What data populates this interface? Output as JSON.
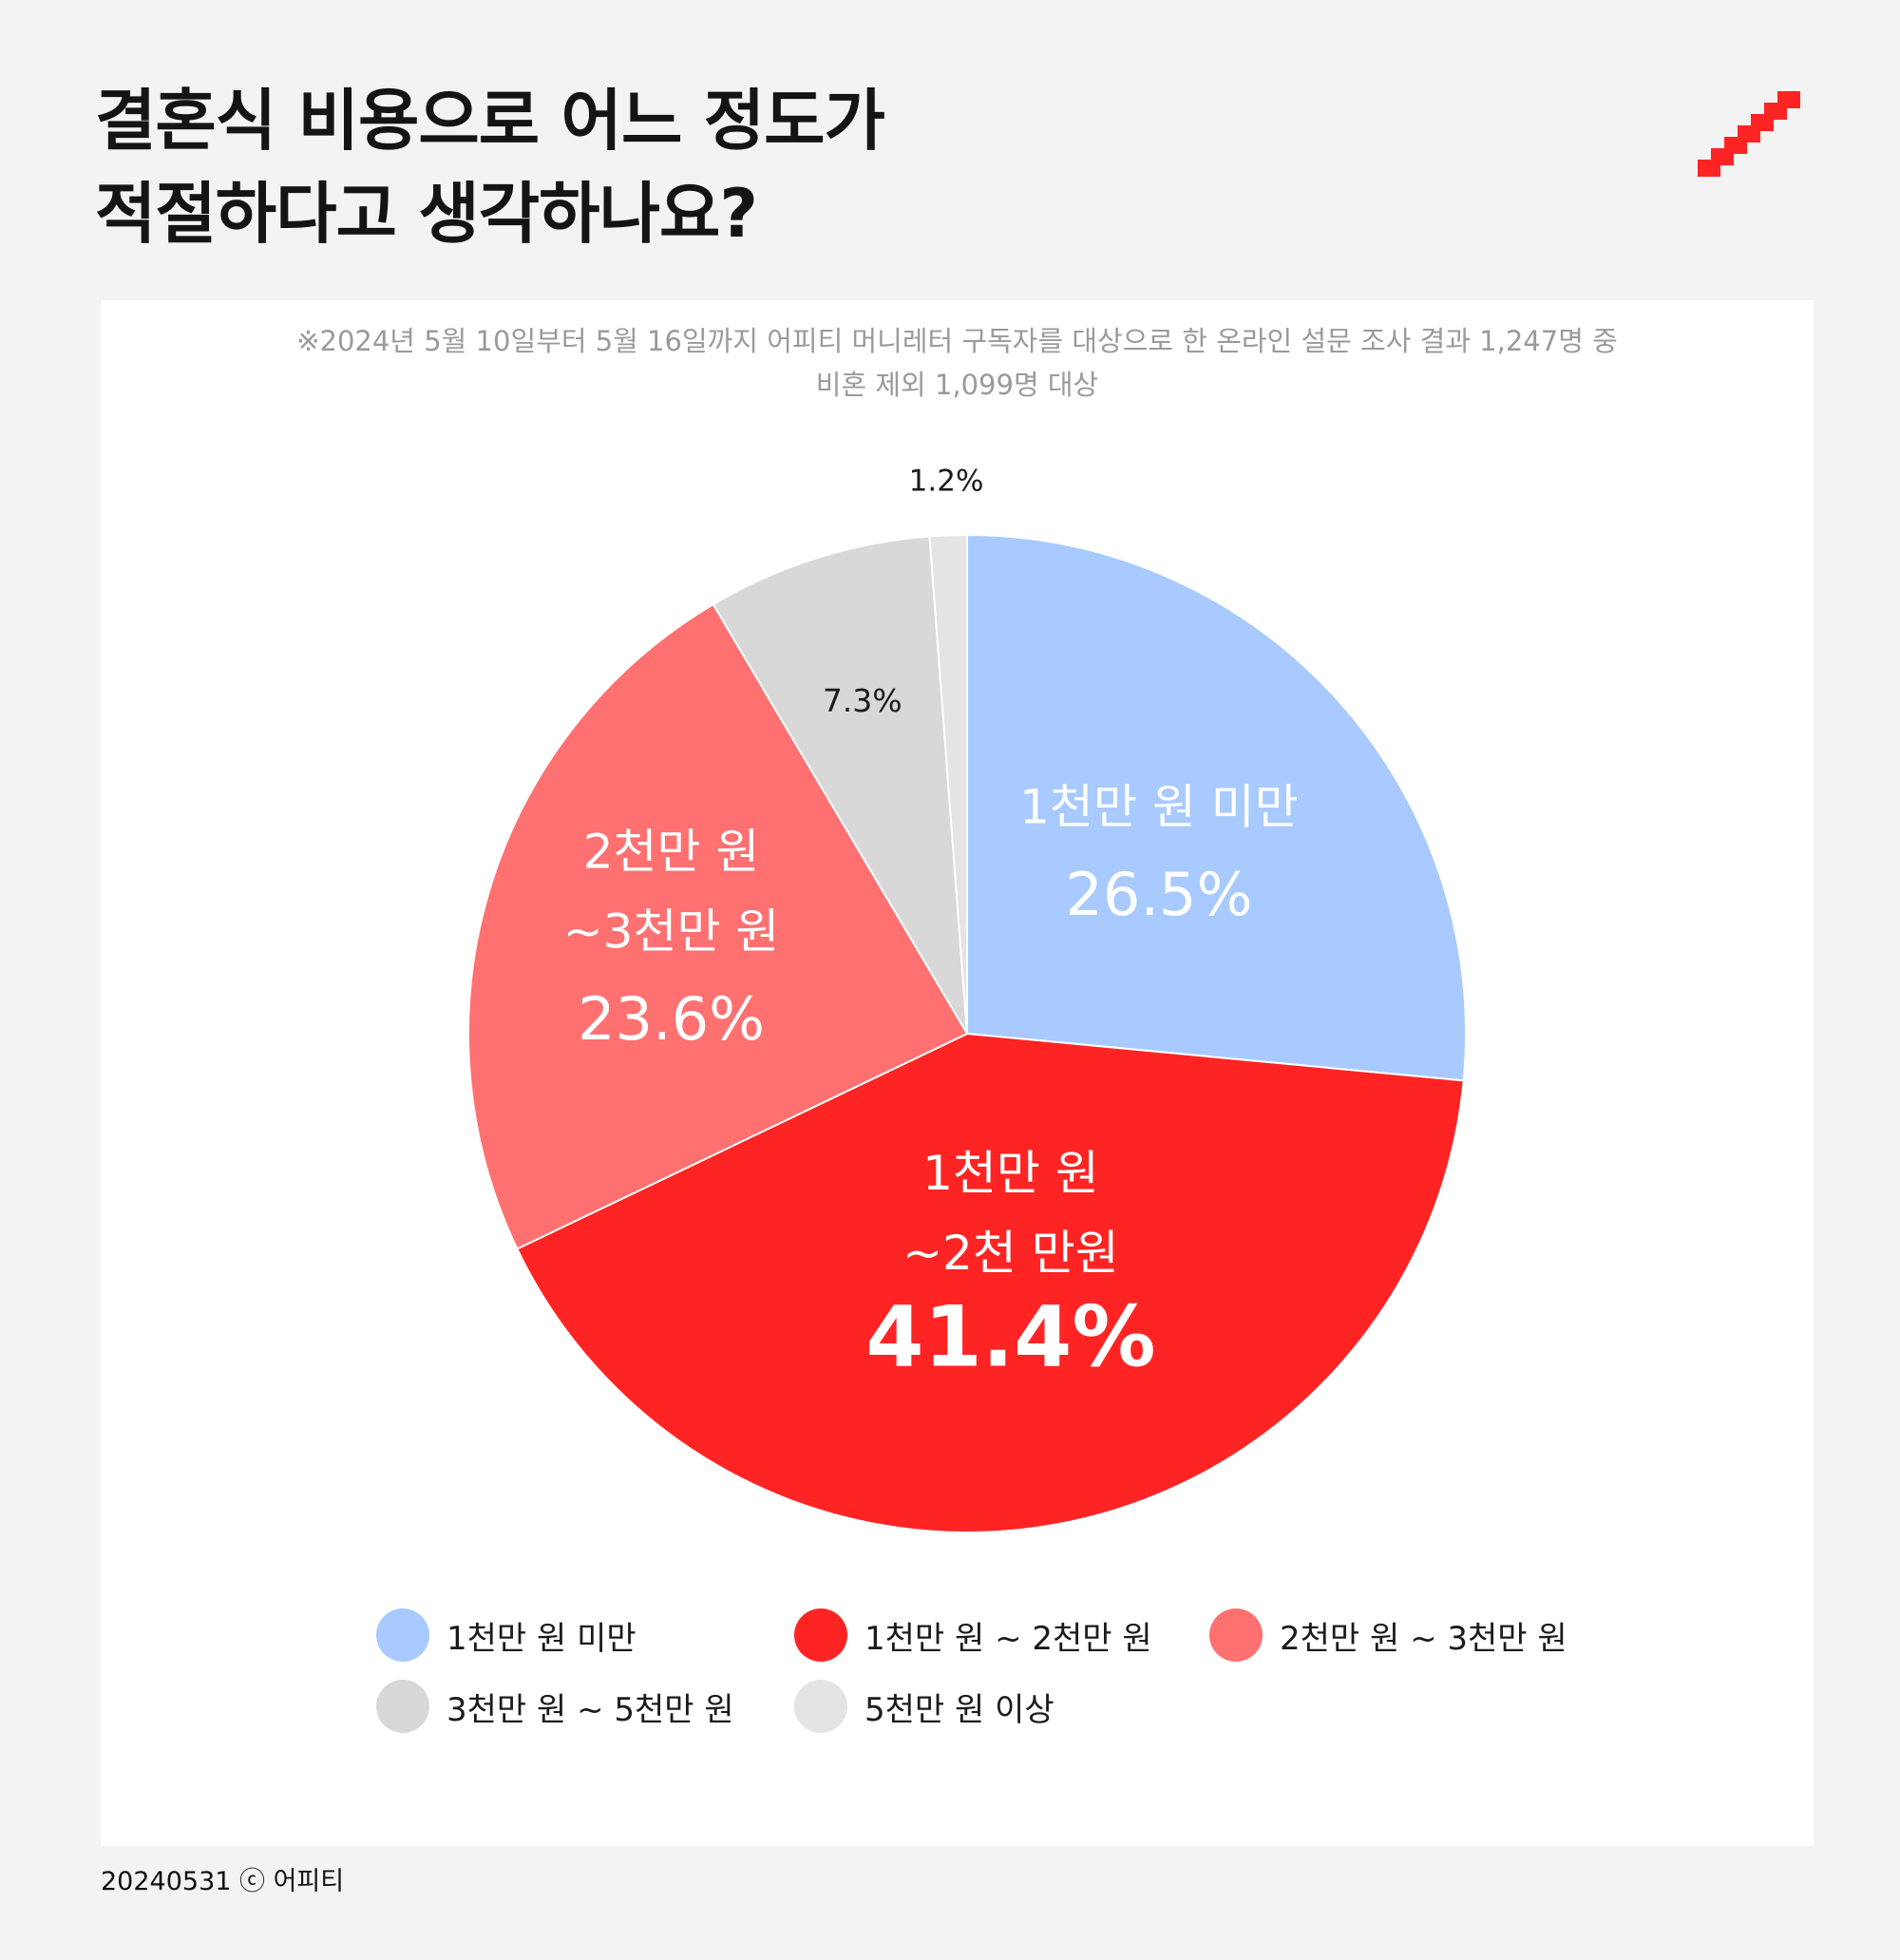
{
  "title": {
    "line1": "결혼식 비용으로 어느 정도가",
    "line2": "적절하다고 생각하나요?"
  },
  "logo_icon": "staircase-icon",
  "note": {
    "line1": "※2024년 5월 10일부터 5월 16일까지 어피티 머니레터 구독자를 대상으로 한 온라인 설문 조사 결과 1,247명 중",
    "line2": "비혼 제외 1,099명 대상"
  },
  "footer": "20240531 ⓒ 어피티",
  "chart_data": {
    "type": "pie",
    "slices": [
      {
        "name": "1천만 원 미만",
        "label_lines": [
          "1천만 원 미만"
        ],
        "value": 26.5,
        "value_label": "26.5%",
        "color": "#a8caff",
        "text_color": "#ffffff"
      },
      {
        "name": "1천만 원 ~ 2천만 원",
        "label_lines": [
          "1천만 원",
          "~2천 만원"
        ],
        "value": 41.4,
        "value_label": "41.4%",
        "color": "#ff2424",
        "text_color": "#ffffff"
      },
      {
        "name": "2천만 원 ~ 3천만 원",
        "label_lines": [
          "2천만 원",
          "~3천만 원"
        ],
        "value": 23.6,
        "value_label": "23.6%",
        "color": "#ff7070",
        "text_color": "#ffffff"
      },
      {
        "name": "3천만 원 ~ 5천만 원",
        "label_lines": [],
        "value": 7.3,
        "value_label": "7.3%",
        "color": "#d8d8d8",
        "text_color": "#1a1a1a"
      },
      {
        "name": "5천만 원 이상",
        "label_lines": [],
        "value": 1.2,
        "value_label": "1.2%",
        "color": "#e4e4e4",
        "text_color": "#1a1a1a"
      }
    ],
    "legend_position": "bottom"
  }
}
